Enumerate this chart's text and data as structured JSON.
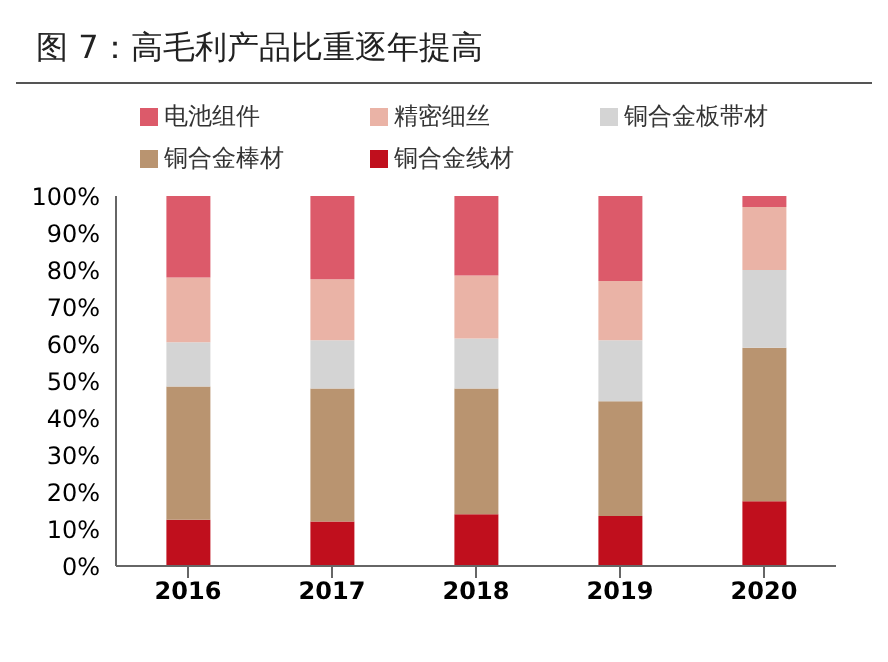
{
  "chart_data": {
    "type": "bar",
    "title": "图 7：高毛利产品比重逐年提高",
    "categories": [
      "2016",
      "2017",
      "2018",
      "2019",
      "2020"
    ],
    "stacked": true,
    "legend": "top",
    "grid": false,
    "ylim": [
      0,
      100
    ],
    "yticks": [
      {
        "value": 0,
        "label": "0%"
      },
      {
        "value": 10,
        "label": "10%"
      },
      {
        "value": 20,
        "label": "20%"
      },
      {
        "value": 30,
        "label": "30%"
      },
      {
        "value": 40,
        "label": "40%"
      },
      {
        "value": 50,
        "label": "50%"
      },
      {
        "value": 60,
        "label": "60%"
      },
      {
        "value": 70,
        "label": "70%"
      },
      {
        "value": 80,
        "label": "80%"
      },
      {
        "value": 90,
        "label": "90%"
      },
      {
        "value": 100,
        "label": "100%"
      }
    ],
    "series": [
      {
        "name": "铜合金线材",
        "color": "#c00f1d",
        "values": [
          12.5,
          12,
          14,
          13.5,
          17.5
        ]
      },
      {
        "name": "铜合金棒材",
        "color": "#b99470",
        "values": [
          36,
          36,
          34,
          31,
          41.5
        ]
      },
      {
        "name": "铜合金板带材",
        "color": "#d4d4d4",
        "values": [
          12,
          13,
          13.5,
          16.5,
          21
        ]
      },
      {
        "name": "精密细丝",
        "color": "#eab3a6",
        "values": [
          17.5,
          16.5,
          17,
          16,
          17
        ]
      },
      {
        "name": "电池组件",
        "color": "#dc5a6a",
        "values": [
          22,
          22.5,
          21.5,
          23,
          3
        ]
      }
    ]
  }
}
